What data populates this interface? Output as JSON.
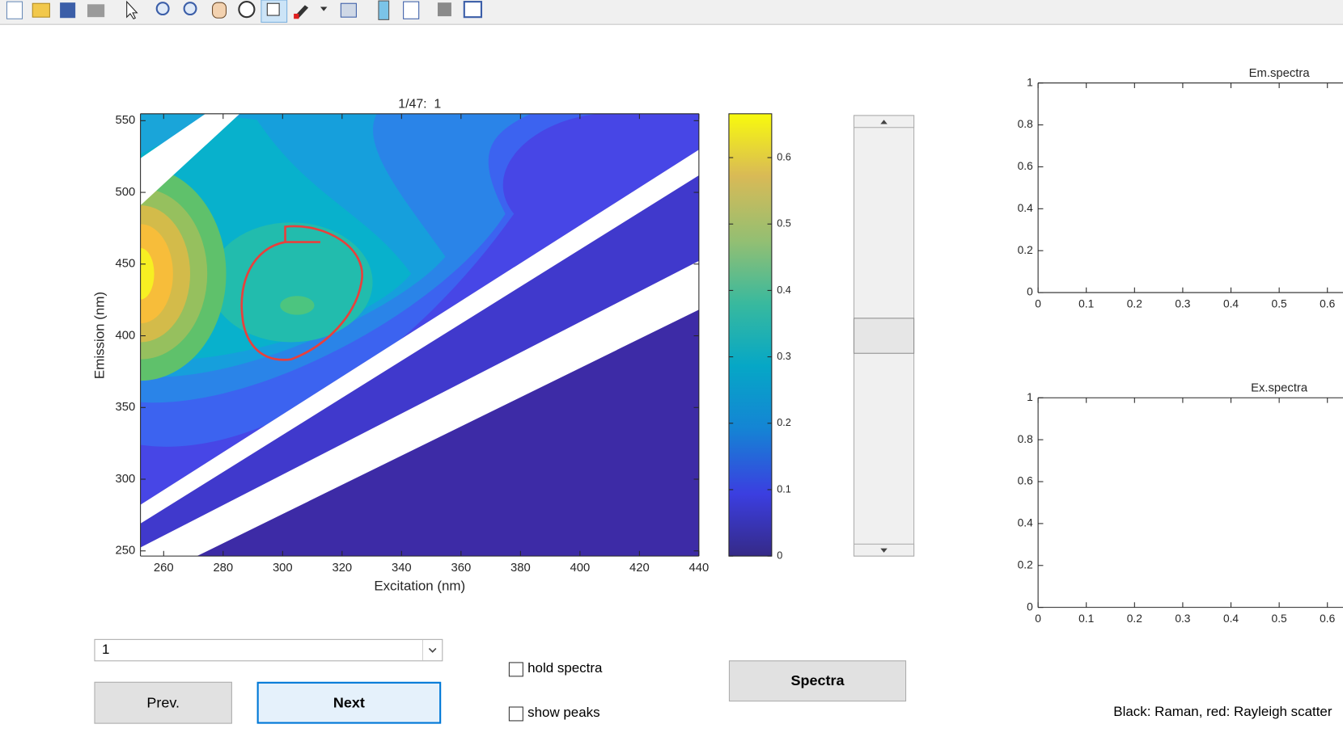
{
  "main_plot": {
    "title": "1/47:  1",
    "xlabel": "Excitation (nm)",
    "ylabel": "Emission (nm)",
    "xlim": [
      252.2,
      440
    ],
    "ylim": [
      246.4,
      554.8
    ],
    "xticks": [
      260,
      280,
      300,
      320,
      340,
      360,
      380,
      400,
      420,
      440
    ],
    "yticks": [
      250,
      300,
      350,
      400,
      450,
      500,
      550
    ]
  },
  "colorbar": {
    "ylim": [
      0,
      0.666
    ],
    "yticks": [
      0,
      0.1,
      0.2,
      0.3,
      0.4,
      0.5,
      0.6
    ]
  },
  "em_spectra": {
    "title": "Em.spectra",
    "xlim": [
      0,
      1
    ],
    "ylim": [
      0,
      1
    ],
    "xticks": [
      0,
      0.1,
      0.2,
      0.3,
      0.4,
      0.5,
      0.6
    ],
    "yticks": [
      0,
      0.2,
      0.4,
      0.6,
      0.8,
      1
    ]
  },
  "ex_spectra": {
    "title": "Ex.spectra",
    "xlim": [
      0,
      1
    ],
    "ylim": [
      0,
      1
    ],
    "xticks": [
      0,
      0.1,
      0.2,
      0.3,
      0.4,
      0.5,
      0.6
    ],
    "yticks": [
      0,
      0.2,
      0.4,
      0.6,
      0.8,
      1
    ]
  },
  "controls": {
    "dropdown": "1",
    "prev": "Prev.",
    "next": "Next",
    "spectra": "Spectra",
    "hold_spectra": "hold spectra",
    "show_peaks": "show peaks",
    "legend_note": "Black: Raman, red: Rayleigh scatter"
  }
}
